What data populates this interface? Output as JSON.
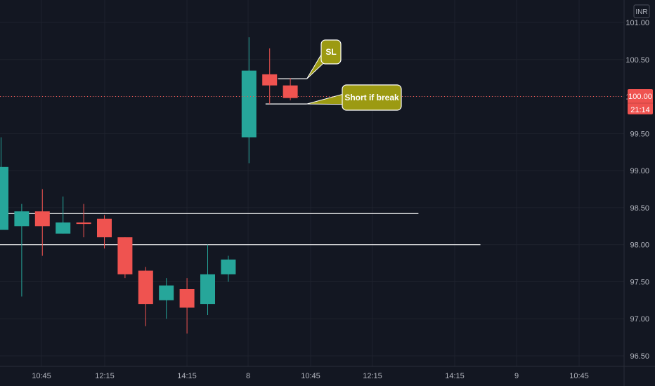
{
  "chart_data": {
    "type": "candlestick",
    "currency": "INR",
    "y_ticks": [
      "96.50",
      "97.00",
      "97.50",
      "98.00",
      "98.50",
      "99.00",
      "99.50",
      "100.00",
      "100.50",
      "101.00"
    ],
    "x_ticks": [
      "10:45",
      "12:15",
      "14:15",
      "8",
      "10:45",
      "12:15",
      "14:15",
      "9",
      "10:45"
    ],
    "ylim": [
      96.35,
      101.15
    ],
    "candles": [
      {
        "open": 98.2,
        "high": 99.45,
        "low": 98.2,
        "close": 99.05
      },
      {
        "open": 98.25,
        "high": 98.55,
        "low": 97.3,
        "close": 98.45
      },
      {
        "open": 98.45,
        "high": 98.75,
        "low": 97.85,
        "close": 98.25
      },
      {
        "open": 98.15,
        "high": 98.65,
        "low": 98.15,
        "close": 98.3
      },
      {
        "open": 98.3,
        "high": 98.55,
        "low": 98.1,
        "close": 98.28
      },
      {
        "open": 98.35,
        "high": 98.4,
        "low": 97.95,
        "close": 98.1
      },
      {
        "open": 98.1,
        "high": 98.1,
        "low": 97.55,
        "close": 97.6
      },
      {
        "open": 97.65,
        "high": 97.7,
        "low": 96.9,
        "close": 97.2
      },
      {
        "open": 97.25,
        "high": 97.55,
        "low": 97.0,
        "close": 97.45
      },
      {
        "open": 97.4,
        "high": 97.55,
        "low": 96.8,
        "close": 97.15
      },
      {
        "open": 97.2,
        "high": 98.0,
        "low": 97.05,
        "close": 97.6
      },
      {
        "open": 97.6,
        "high": 97.85,
        "low": 97.5,
        "close": 97.8
      },
      {
        "open": 99.45,
        "high": 100.8,
        "low": 99.1,
        "close": 100.35
      },
      {
        "open": 100.3,
        "high": 100.65,
        "low": 99.9,
        "close": 100.15
      },
      {
        "open": 100.15,
        "high": 100.25,
        "low": 99.95,
        "close": 99.98
      }
    ],
    "levels": [
      {
        "value": 98.42,
        "ends_at_candle": 20.2
      },
      {
        "value": 98.0,
        "ends_at_candle": 23.2
      },
      {
        "value": 100.24,
        "starts_at_candle": 13.4,
        "ends_at_candle": 14.8
      },
      {
        "value": 99.9,
        "starts_at_candle": 12.8,
        "ends_at_candle": 14.8
      }
    ],
    "callouts": [
      {
        "text": "SL",
        "anchor_value": 100.24
      },
      {
        "text": "Short if break",
        "anchor_value": 99.9
      }
    ],
    "last_price": {
      "value": 100.0,
      "label": "100.00",
      "countdown": "21:14"
    },
    "colors": {
      "up": "#26a69a",
      "down": "#ef5350",
      "background": "#131722",
      "grid": "#1e222d",
      "callout": "#9c9a12",
      "line": "#ffffff"
    }
  }
}
